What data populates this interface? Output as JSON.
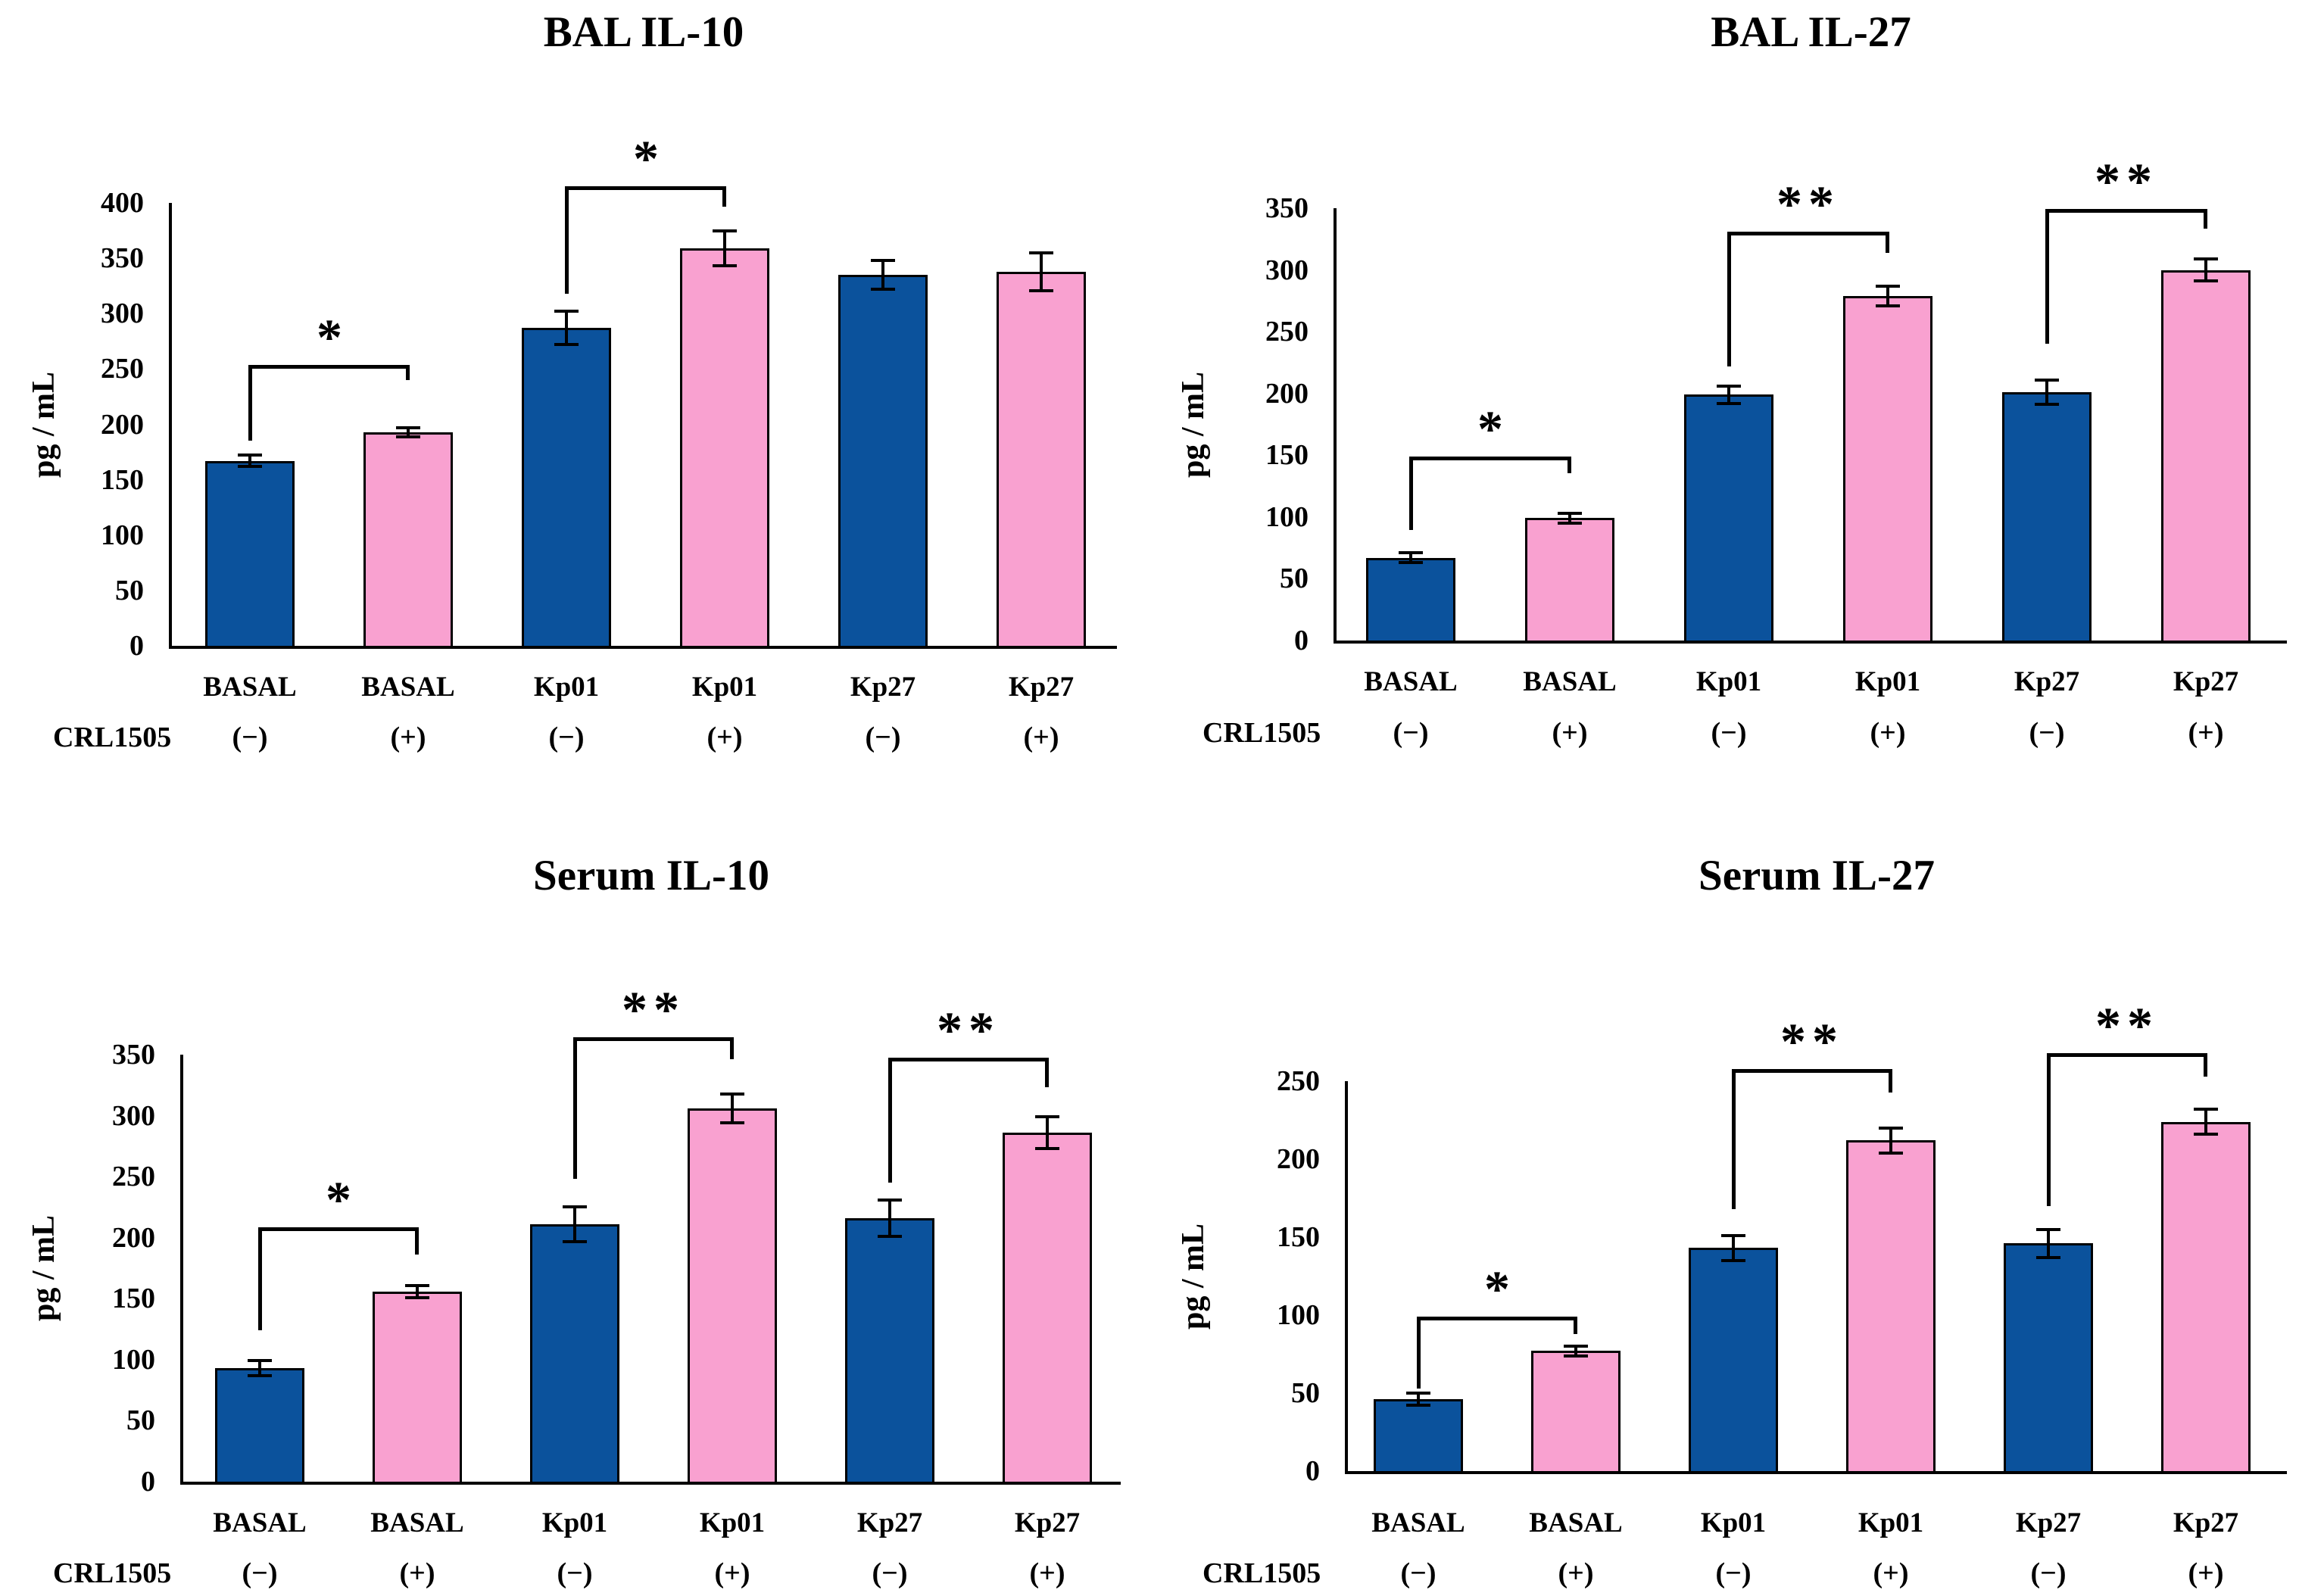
{
  "figure": {
    "background": "#ffffff",
    "series": [
      {
        "name": "CRL1505 (−)",
        "color": "#0B529C"
      },
      {
        "name": "CRL1505 (+)",
        "color": "#F9A1D0"
      }
    ]
  },
  "colors": {
    "bar_negative": "#0B529C",
    "bar_positive": "#F9A1D0",
    "outline": "#000000",
    "text": "#000000"
  },
  "chart_data": [
    {
      "type": "bar",
      "title": "BAL IL-10",
      "xlabel": "",
      "ylabel": "pg / mL",
      "ylim": [
        0,
        400
      ],
      "yticks": [
        0,
        50,
        100,
        150,
        200,
        250,
        300,
        350,
        400
      ],
      "grid": false,
      "legend": "none",
      "categories": [
        "BASAL",
        "BASAL",
        "Kp01",
        "Kp01",
        "Kp27",
        "Kp27"
      ],
      "crl_row_label": "CRL1505",
      "crl1505": [
        "(−)",
        "(+)",
        "(−)",
        "(+)",
        "(−)",
        "(+)"
      ],
      "values": [
        167,
        193,
        287,
        359,
        335,
        338
      ],
      "errors": [
        5,
        4,
        15,
        16,
        13,
        17
      ],
      "significance": [
        {
          "from": 0,
          "to": 1,
          "label": "*",
          "top": 252,
          "left_end": 185,
          "right_end": 240
        },
        {
          "from": 2,
          "to": 3,
          "label": "*",
          "top": 414,
          "left_end": 318,
          "right_end": 397
        }
      ]
    },
    {
      "type": "bar",
      "title": "BAL IL-27",
      "xlabel": "",
      "ylabel": "pg / mL",
      "ylim": [
        0,
        350
      ],
      "yticks": [
        0,
        50,
        100,
        150,
        200,
        250,
        300,
        350
      ],
      "grid": false,
      "legend": "none",
      "categories": [
        "BASAL",
        "BASAL",
        "Kp01",
        "Kp01",
        "Kp27",
        "Kp27"
      ],
      "crl_row_label": "CRL1505",
      "crl1505": [
        "(−)",
        "(+)",
        "(−)",
        "(+)",
        "(−)",
        "(+)"
      ],
      "values": [
        67,
        99,
        199,
        279,
        201,
        300
      ],
      "errors": [
        4,
        4,
        7,
        8,
        10,
        9
      ],
      "significance": [
        {
          "from": 0,
          "to": 1,
          "label": "*",
          "top": 148,
          "left_end": 90,
          "right_end": 136
        },
        {
          "from": 2,
          "to": 3,
          "label": "**",
          "top": 330,
          "left_end": 222,
          "right_end": 314
        },
        {
          "from": 4,
          "to": 5,
          "label": "**",
          "top": 348,
          "left_end": 240,
          "right_end": 333
        }
      ]
    },
    {
      "type": "bar",
      "title": "Serum IL-10",
      "xlabel": "",
      "ylabel": "pg / mL",
      "ylim": [
        0,
        350
      ],
      "yticks": [
        0,
        50,
        100,
        150,
        200,
        250,
        300,
        350
      ],
      "grid": false,
      "legend": "none",
      "categories": [
        "BASAL",
        "BASAL",
        "Kp01",
        "Kp01",
        "Kp27",
        "Kp27"
      ],
      "crl_row_label": "CRL1505",
      "crl1505": [
        "(−)",
        "(+)",
        "(−)",
        "(+)",
        "(−)",
        "(+)"
      ],
      "values": [
        93,
        156,
        211,
        306,
        216,
        286
      ],
      "errors": [
        6,
        5,
        14,
        12,
        15,
        13
      ],
      "significance": [
        {
          "from": 0,
          "to": 1,
          "label": "*",
          "top": 207,
          "left_end": 124,
          "right_end": 186
        },
        {
          "from": 2,
          "to": 3,
          "label": "**",
          "top": 363,
          "left_end": 248,
          "right_end": 346
        },
        {
          "from": 4,
          "to": 5,
          "label": "**",
          "top": 346,
          "left_end": 245,
          "right_end": 323
        }
      ]
    },
    {
      "type": "bar",
      "title": "Serum IL-27",
      "xlabel": "",
      "ylabel": "pg / mL",
      "ylim": [
        0,
        250
      ],
      "yticks": [
        0,
        50,
        100,
        150,
        200,
        250
      ],
      "grid": false,
      "legend": "none",
      "categories": [
        "BASAL",
        "BASAL",
        "Kp01",
        "Kp01",
        "Kp27",
        "Kp27"
      ],
      "crl_row_label": "CRL1505",
      "crl1505": [
        "(−)",
        "(+)",
        "(−)",
        "(+)",
        "(−)",
        "(+)"
      ],
      "values": [
        46,
        77,
        143,
        212,
        146,
        224
      ],
      "errors": [
        4,
        3,
        8,
        8,
        9,
        8
      ],
      "significance": [
        {
          "from": 0,
          "to": 1,
          "label": "*",
          "top": 98,
          "left_end": 53,
          "right_end": 88
        },
        {
          "from": 2,
          "to": 3,
          "label": "**",
          "top": 257,
          "left_end": 168,
          "right_end": 243
        },
        {
          "from": 4,
          "to": 5,
          "label": "**",
          "top": 267,
          "left_end": 170,
          "right_end": 253
        }
      ]
    }
  ]
}
